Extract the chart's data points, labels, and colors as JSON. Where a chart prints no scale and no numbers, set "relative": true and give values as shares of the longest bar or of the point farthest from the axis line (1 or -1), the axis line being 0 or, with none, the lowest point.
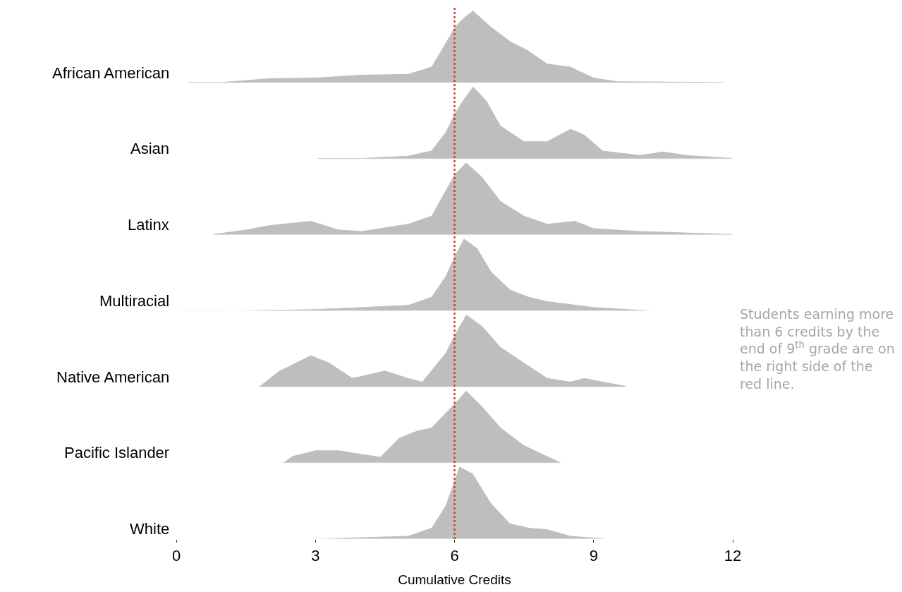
{
  "chart_data": [
    {
      "type": "area",
      "relative": true,
      "xlim": [
        0,
        12
      ],
      "tick_labels": false,
      "series": [
        {
          "name": "African American",
          "color": "#bebebe",
          "x": [
            0.25,
            1,
            2,
            3,
            4,
            5,
            5.5,
            5.8,
            6,
            6.2,
            6.4,
            6.8,
            7.2,
            7.6,
            8,
            8.5,
            9,
            9.5,
            11.8
          ],
          "values": [
            0.02,
            0.02,
            0.07,
            0.08,
            0.12,
            0.13,
            0.23,
            0.55,
            0.77,
            0.9,
            1,
            0.77,
            0.58,
            0.45,
            0.27,
            0.23,
            0.08,
            0.03,
            0.02
          ]
        }
      ]
    },
    {
      "type": "area",
      "relative": true,
      "xlim": [
        0,
        12
      ],
      "tick_labels": false,
      "series": [
        {
          "name": "Asian",
          "color": "#bebebe",
          "x": [
            3.05,
            4,
            5,
            5.5,
            5.8,
            6,
            6.2,
            6.4,
            6.7,
            7,
            7.5,
            8,
            8.5,
            8.8,
            9.2,
            10,
            10.5,
            11,
            12
          ],
          "values": [
            0.02,
            0.02,
            0.05,
            0.12,
            0.37,
            0.63,
            0.83,
            1,
            0.8,
            0.46,
            0.25,
            0.25,
            0.42,
            0.34,
            0.12,
            0.06,
            0.11,
            0.06,
            0.02
          ]
        }
      ]
    },
    {
      "type": "area",
      "relative": true,
      "xlim": [
        0,
        12
      ],
      "tick_labels": false,
      "series": [
        {
          "name": "Latinx",
          "color": "#bebebe",
          "x": [
            0.8,
            1.5,
            2,
            2.9,
            3.5,
            4,
            5,
            5.5,
            6,
            6.25,
            6.6,
            7,
            7.5,
            8,
            8.6,
            9,
            10,
            12
          ],
          "values": [
            0.02,
            0.08,
            0.14,
            0.2,
            0.08,
            0.06,
            0.16,
            0.27,
            0.84,
            1,
            0.8,
            0.47,
            0.27,
            0.16,
            0.2,
            0.1,
            0.06,
            0.02
          ]
        }
      ]
    },
    {
      "type": "area",
      "relative": true,
      "xlim": [
        0,
        12
      ],
      "tick_labels": false,
      "series": [
        {
          "name": "Multiracial",
          "color": "#bebebe",
          "x": [
            0.1,
            1,
            3,
            4,
            5,
            5.5,
            5.8,
            6,
            6.2,
            6.5,
            6.8,
            7.2,
            7.6,
            8,
            8.5,
            9,
            10.3
          ],
          "values": [
            0.01,
            0.01,
            0.03,
            0.06,
            0.09,
            0.2,
            0.48,
            0.76,
            1,
            0.86,
            0.54,
            0.3,
            0.2,
            0.14,
            0.1,
            0.06,
            0.01
          ]
        }
      ]
    },
    {
      "type": "area",
      "relative": true,
      "xlim": [
        0,
        12
      ],
      "tick_labels": false,
      "series": [
        {
          "name": "Native American",
          "color": "#bebebe",
          "x": [
            1.8,
            2.2,
            2.9,
            3.3,
            3.8,
            4.5,
            5,
            5.3,
            5.8,
            6,
            6.25,
            6.6,
            7,
            7.5,
            8,
            8.5,
            8.8,
            9.2,
            9.7
          ],
          "values": [
            0.02,
            0.22,
            0.44,
            0.34,
            0.13,
            0.23,
            0.13,
            0.08,
            0.47,
            0.72,
            1,
            0.84,
            0.55,
            0.34,
            0.13,
            0.08,
            0.13,
            0.08,
            0.02
          ]
        }
      ]
    },
    {
      "type": "area",
      "relative": true,
      "xlim": [
        0,
        12
      ],
      "tick_labels": false,
      "series": [
        {
          "name": "Pacific Islander",
          "color": "#bebebe",
          "x": [
            2.3,
            2.5,
            3,
            3.5,
            4,
            4.4,
            4.8,
            5.2,
            5.5,
            6,
            6.25,
            6.6,
            7,
            7.5,
            8,
            8.3
          ],
          "values": [
            0.01,
            0.1,
            0.18,
            0.18,
            0.13,
            0.09,
            0.35,
            0.45,
            0.49,
            0.82,
            1,
            0.78,
            0.49,
            0.25,
            0.1,
            0.01
          ]
        }
      ]
    },
    {
      "type": "area",
      "relative": true,
      "xlim": [
        0,
        12
      ],
      "xticks": [
        0,
        3,
        6,
        9,
        12
      ],
      "tick_labels": "x",
      "xlabel": "Cumulative Credits",
      "ref_lines": [
        {
          "axis": "x",
          "value": 6,
          "color": "#d0441c",
          "line_style": "dotted"
        }
      ],
      "annotations": [
        "Students earning more than 6 credits by the end of 9$^{th}$ grade are on the right side of the red line."
      ],
      "series": [
        {
          "name": "White",
          "color": "#bebebe",
          "x": [
            3,
            4,
            5,
            5.5,
            5.8,
            6.1,
            6.4,
            6.8,
            7.2,
            7.6,
            8,
            8.5,
            9.3,
            10
          ],
          "values": [
            0.01,
            0.03,
            0.05,
            0.16,
            0.46,
            1,
            0.9,
            0.49,
            0.22,
            0.16,
            0.14,
            0.05,
            0.01,
            0.01
          ]
        }
      ]
    }
  ]
}
